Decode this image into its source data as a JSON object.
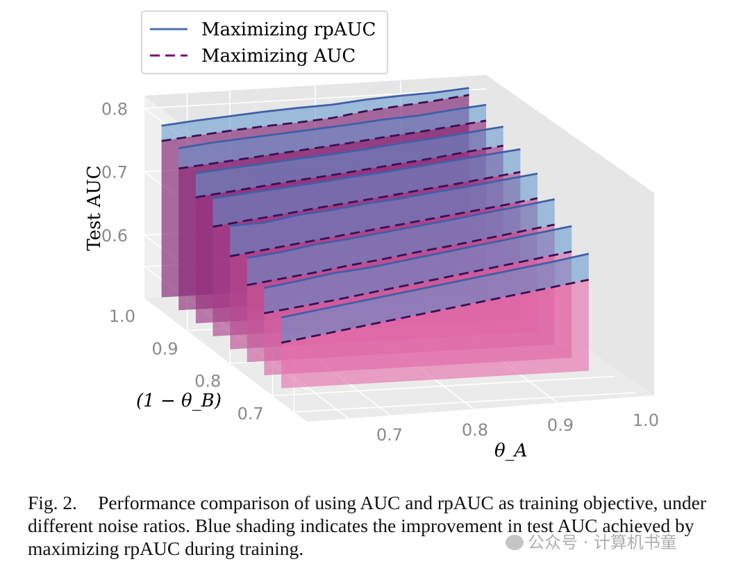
{
  "chart_data": {
    "type": "3d-line-waterfall",
    "zlabel": "Test AUC",
    "xlabel": "θ_A",
    "ylabel": "(1 − θ_B)",
    "z_ticks": [
      "0.6",
      "0.7",
      "0.8"
    ],
    "x_ticks": [
      "0.7",
      "0.8",
      "0.9",
      "1.0"
    ],
    "y_ticks": [
      "0.7",
      "0.8",
      "0.9",
      "1.0"
    ],
    "zlim": [
      0.5,
      0.82
    ],
    "xlim": [
      0.6,
      1.0
    ],
    "ylim": [
      0.62,
      1.0
    ],
    "legend": {
      "position": "top-left",
      "entries": [
        {
          "label": "Maximizing rpAUC",
          "style": "solid",
          "color": "#4a6faf"
        },
        {
          "label": "Maximizing AUC",
          "style": "dashed",
          "color": "#7a0f6e"
        }
      ]
    },
    "x": [
      0.62,
      0.66,
      0.7,
      0.74,
      0.78,
      0.82,
      0.86,
      0.9,
      0.94,
      0.98
    ],
    "series": [
      {
        "name": "1-θB=1.00",
        "rpAUC": [
          0.771,
          0.776,
          0.78,
          0.784,
          0.787,
          0.789,
          0.794,
          0.797,
          0.799,
          0.803
        ],
        "AUC": [
          0.747,
          0.752,
          0.757,
          0.761,
          0.764,
          0.768,
          0.776,
          0.781,
          0.786,
          0.792
        ]
      },
      {
        "name": "1-θB=0.96",
        "rpAUC": [
          0.756,
          0.762,
          0.766,
          0.77,
          0.774,
          0.778,
          0.783,
          0.786,
          0.792,
          0.797
        ],
        "AUC": [
          0.724,
          0.729,
          0.734,
          0.739,
          0.744,
          0.749,
          0.755,
          0.76,
          0.766,
          0.772
        ]
      },
      {
        "name": "1-θB=0.92",
        "rpAUC": [
          0.737,
          0.742,
          0.746,
          0.751,
          0.755,
          0.76,
          0.766,
          0.771,
          0.777,
          0.783
        ],
        "AUC": [
          0.699,
          0.705,
          0.711,
          0.717,
          0.722,
          0.728,
          0.734,
          0.74,
          0.747,
          0.753
        ]
      },
      {
        "name": "1-θB=0.88",
        "rpAUC": [
          0.718,
          0.723,
          0.728,
          0.733,
          0.739,
          0.744,
          0.75,
          0.756,
          0.762,
          0.768
        ],
        "AUC": [
          0.673,
          0.68,
          0.686,
          0.693,
          0.699,
          0.705,
          0.712,
          0.718,
          0.725,
          0.732
        ]
      },
      {
        "name": "1-θB=0.84",
        "rpAUC": [
          0.695,
          0.697,
          0.706,
          0.711,
          0.718,
          0.723,
          0.73,
          0.736,
          0.743,
          0.75
        ],
        "AUC": [
          0.647,
          0.654,
          0.661,
          0.668,
          0.675,
          0.682,
          0.689,
          0.696,
          0.703,
          0.711
        ]
      },
      {
        "name": "1-θB=0.80",
        "rpAUC": [
          0.665,
          0.671,
          0.68,
          0.686,
          0.693,
          0.7,
          0.707,
          0.715,
          0.722,
          0.73
        ],
        "AUC": [
          0.622,
          0.629,
          0.636,
          0.644,
          0.651,
          0.659,
          0.666,
          0.674,
          0.682,
          0.69
        ]
      },
      {
        "name": "1-θB=0.76",
        "rpAUC": [
          0.638,
          0.646,
          0.655,
          0.66,
          0.668,
          0.676,
          0.684,
          0.692,
          0.7,
          0.708
        ],
        "AUC": [
          0.598,
          0.605,
          0.612,
          0.62,
          0.628,
          0.636,
          0.644,
          0.652,
          0.66,
          0.668
        ]
      },
      {
        "name": "1-θB=0.72",
        "rpAUC": [
          0.612,
          0.62,
          0.628,
          0.636,
          0.644,
          0.652,
          0.66,
          0.668,
          0.676,
          0.685
        ],
        "AUC": [
          0.572,
          0.58,
          0.588,
          0.596,
          0.604,
          0.612,
          0.62,
          0.628,
          0.636,
          0.644
        ]
      }
    ]
  },
  "caption": {
    "label": "Fig. 2.",
    "text": "Performance comparison of using AUC and rpAUC as training objective, under different noise ratios. Blue shading indicates the improvement in test AUC achieved by maximizing rpAUC during training."
  },
  "watermark": "公众号 · 计算机书童"
}
